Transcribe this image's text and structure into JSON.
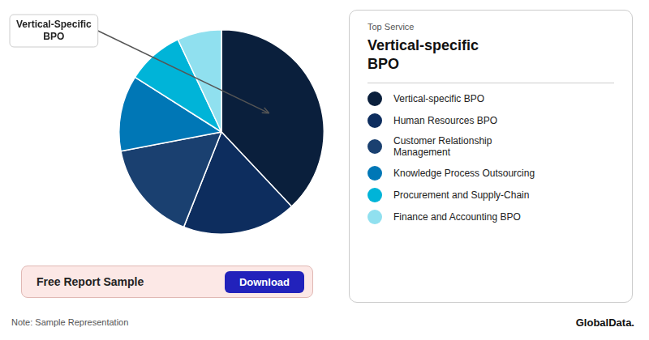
{
  "chart_data": {
    "type": "pie",
    "subtitle": "Top Service",
    "title": "Vertical-specific\nBPO",
    "categories": [
      "Vertical-specific BPO",
      "Human Resources BPO",
      "Customer Relationship\nManagement",
      "Knowledge Process Outsourcing",
      "Procurement and Supply-Chain",
      "Finance and Accounting BPO"
    ],
    "values": [
      38,
      18,
      16,
      12,
      9,
      7
    ],
    "colors": [
      "#0a1f3c",
      "#0d2d5e",
      "#1a4070",
      "#0077b6",
      "#00b4d8",
      "#90e0ef"
    ],
    "legend": "right",
    "annotations": [
      {
        "text": "Vertical-Specific\nBPO",
        "target": "Vertical-specific BPO"
      },
      {
        "text": "Free Report Sample",
        "color": "#fce8e6"
      },
      {
        "text": "Download",
        "color": "#2222bb"
      },
      {
        "text": "Note: Sample Representation"
      },
      {
        "text": "GlobalData."
      }
    ]
  }
}
